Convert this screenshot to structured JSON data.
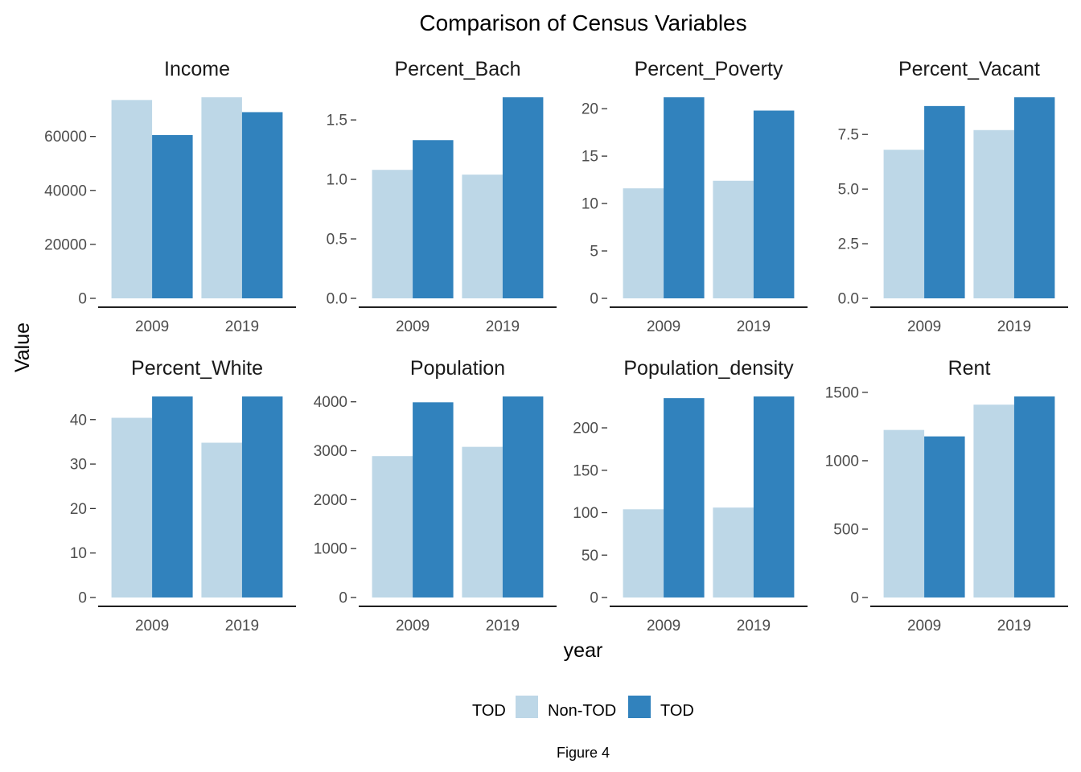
{
  "chart_data": {
    "type": "bar",
    "title": "Comparison of Census Variables",
    "xlabel": "year",
    "ylabel": "Value",
    "caption": "Figure 4",
    "legend": {
      "title": "TOD",
      "position": "bottom",
      "entries": [
        {
          "name": "Non-TOD",
          "color": "#bdd7e7"
        },
        {
          "name": "TOD",
          "color": "#3182bd"
        }
      ]
    },
    "grid": false,
    "layout": "facet_wrap, 2 rows x 4 columns, free y scales",
    "categories": [
      "2009",
      "2019"
    ],
    "panels": [
      {
        "name": "Income",
        "ylim": [
          0,
          74500
        ],
        "ticks": [
          0,
          20000,
          40000,
          60000
        ],
        "tick_labels": [
          "0",
          "20000",
          "40000",
          "60000"
        ],
        "series": [
          {
            "name": "Non-TOD",
            "values": [
              73500,
              74500
            ]
          },
          {
            "name": "TOD",
            "values": [
              60500,
              69000
            ]
          }
        ]
      },
      {
        "name": "Percent_Bach",
        "ylim": [
          0,
          1.69
        ],
        "ticks": [
          0,
          0.5,
          1.0,
          1.5
        ],
        "tick_labels": [
          "0.0",
          "0.5",
          "1.0",
          "1.5"
        ],
        "series": [
          {
            "name": "Non-TOD",
            "values": [
              1.08,
              1.04
            ]
          },
          {
            "name": "TOD",
            "values": [
              1.33,
              1.69
            ]
          }
        ]
      },
      {
        "name": "Percent_Poverty",
        "ylim": [
          0,
          21.2
        ],
        "ticks": [
          0,
          5,
          10,
          15,
          20
        ],
        "tick_labels": [
          "0",
          "5",
          "10",
          "15",
          "20"
        ],
        "series": [
          {
            "name": "Non-TOD",
            "values": [
              11.6,
              12.4
            ]
          },
          {
            "name": "TOD",
            "values": [
              21.2,
              19.8
            ]
          }
        ]
      },
      {
        "name": "Percent_Vacant",
        "ylim": [
          0,
          9.2
        ],
        "ticks": [
          0,
          2.5,
          5.0,
          7.5
        ],
        "tick_labels": [
          "0.0",
          "2.5",
          "5.0",
          "7.5"
        ],
        "series": [
          {
            "name": "Non-TOD",
            "values": [
              6.8,
              7.7
            ]
          },
          {
            "name": "TOD",
            "values": [
              8.8,
              9.2
            ]
          }
        ]
      },
      {
        "name": "Percent_White",
        "ylim": [
          0,
          45.2
        ],
        "ticks": [
          0,
          10,
          20,
          30,
          40
        ],
        "tick_labels": [
          "0",
          "10",
          "20",
          "30",
          "40"
        ],
        "series": [
          {
            "name": "Non-TOD",
            "values": [
              40.4,
              34.8
            ]
          },
          {
            "name": "TOD",
            "values": [
              45.2,
              45.2
            ]
          }
        ]
      },
      {
        "name": "Population",
        "ylim": [
          0,
          4110
        ],
        "ticks": [
          0,
          1000,
          2000,
          3000,
          4000
        ],
        "tick_labels": [
          "0",
          "1000",
          "2000",
          "3000",
          "4000"
        ],
        "series": [
          {
            "name": "Non-TOD",
            "values": [
              2890,
              3080
            ]
          },
          {
            "name": "TOD",
            "values": [
              3990,
              4110
            ]
          }
        ]
      },
      {
        "name": "Population_density",
        "ylim": [
          0,
          237
        ],
        "ticks": [
          0,
          50,
          100,
          150,
          200
        ],
        "tick_labels": [
          "0",
          "50",
          "100",
          "150",
          "200"
        ],
        "series": [
          {
            "name": "Non-TOD",
            "values": [
              104,
              106
            ]
          },
          {
            "name": "TOD",
            "values": [
              235,
              237
            ]
          }
        ]
      },
      {
        "name": "Rent",
        "ylim": [
          0,
          1470
        ],
        "ticks": [
          0,
          500,
          1000,
          1500
        ],
        "tick_labels": [
          "0",
          "500",
          "1000",
          "1500"
        ],
        "series": [
          {
            "name": "Non-TOD",
            "values": [
              1225,
              1410
            ]
          },
          {
            "name": "TOD",
            "values": [
              1178,
              1470
            ]
          }
        ]
      }
    ]
  }
}
